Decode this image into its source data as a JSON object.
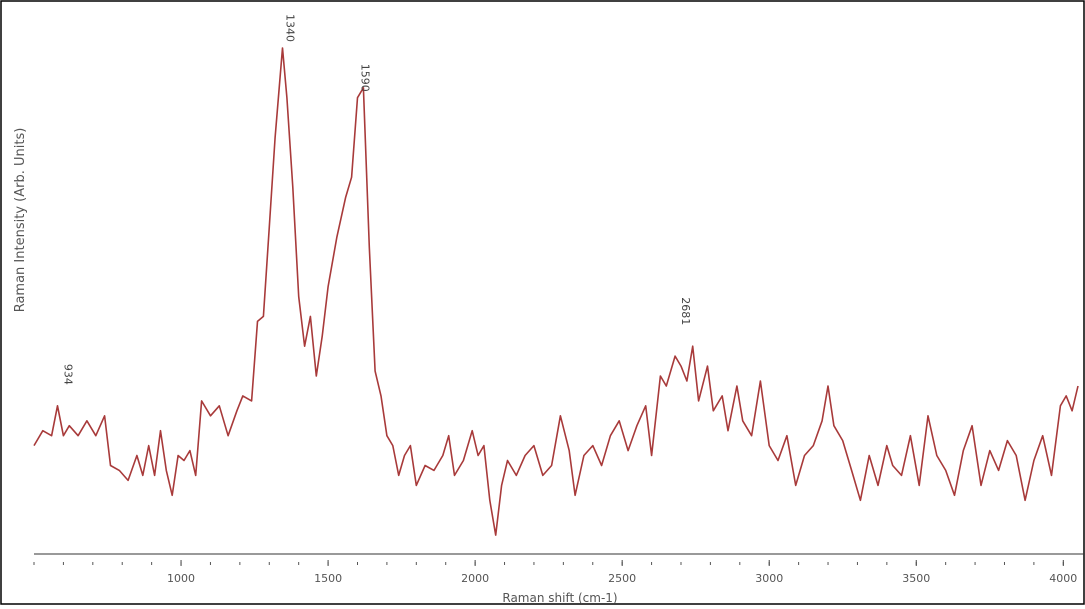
{
  "chart_data": {
    "type": "line",
    "title": "",
    "xlabel": "Raman shift (cm-1)",
    "ylabel": "Raman Intensity (Arb. Units)",
    "xlim": [
      500,
      4050
    ],
    "ylim": [
      0,
      100
    ],
    "x_ticks": [
      1000,
      1500,
      2000,
      2500,
      3000,
      3500,
      4000
    ],
    "grid": false,
    "legend": "none",
    "line_color": "#a83a3a",
    "annotations": [
      {
        "label": "934",
        "x": 590,
        "y": 31
      },
      {
        "label": "1340",
        "x": 1345,
        "y": 100
      },
      {
        "label": "1590",
        "x": 1600,
        "y": 90
      },
      {
        "label": "2681",
        "x": 2690,
        "y": 43
      }
    ],
    "series": [
      {
        "values": [
          [
            500,
            20
          ],
          [
            530,
            23
          ],
          [
            560,
            22
          ],
          [
            580,
            28
          ],
          [
            600,
            22
          ],
          [
            620,
            24
          ],
          [
            650,
            22
          ],
          [
            680,
            25
          ],
          [
            710,
            22
          ],
          [
            740,
            26
          ],
          [
            760,
            16
          ],
          [
            790,
            15
          ],
          [
            820,
            13
          ],
          [
            850,
            18
          ],
          [
            870,
            14
          ],
          [
            890,
            20
          ],
          [
            910,
            14
          ],
          [
            930,
            23
          ],
          [
            950,
            15
          ],
          [
            970,
            10
          ],
          [
            990,
            18
          ],
          [
            1010,
            17
          ],
          [
            1030,
            19
          ],
          [
            1050,
            14
          ],
          [
            1070,
            29
          ],
          [
            1100,
            26
          ],
          [
            1130,
            28
          ],
          [
            1160,
            22
          ],
          [
            1190,
            27
          ],
          [
            1210,
            30
          ],
          [
            1240,
            29
          ],
          [
            1260,
            45
          ],
          [
            1280,
            46
          ],
          [
            1300,
            64
          ],
          [
            1320,
            82
          ],
          [
            1345,
            100
          ],
          [
            1360,
            90
          ],
          [
            1380,
            72
          ],
          [
            1400,
            50
          ],
          [
            1420,
            40
          ],
          [
            1440,
            46
          ],
          [
            1460,
            34
          ],
          [
            1480,
            42
          ],
          [
            1500,
            52
          ],
          [
            1530,
            62
          ],
          [
            1560,
            70
          ],
          [
            1580,
            74
          ],
          [
            1600,
            90
          ],
          [
            1620,
            92
          ],
          [
            1640,
            60
          ],
          [
            1660,
            35
          ],
          [
            1680,
            30
          ],
          [
            1700,
            22
          ],
          [
            1720,
            20
          ],
          [
            1740,
            14
          ],
          [
            1760,
            18
          ],
          [
            1780,
            20
          ],
          [
            1800,
            12
          ],
          [
            1830,
            16
          ],
          [
            1860,
            15
          ],
          [
            1890,
            18
          ],
          [
            1910,
            22
          ],
          [
            1930,
            14
          ],
          [
            1960,
            17
          ],
          [
            1990,
            23
          ],
          [
            2010,
            18
          ],
          [
            2030,
            20
          ],
          [
            2050,
            9
          ],
          [
            2070,
            2
          ],
          [
            2090,
            12
          ],
          [
            2110,
            17
          ],
          [
            2140,
            14
          ],
          [
            2170,
            18
          ],
          [
            2200,
            20
          ],
          [
            2230,
            14
          ],
          [
            2260,
            16
          ],
          [
            2290,
            26
          ],
          [
            2320,
            19
          ],
          [
            2340,
            10
          ],
          [
            2370,
            18
          ],
          [
            2400,
            20
          ],
          [
            2430,
            16
          ],
          [
            2460,
            22
          ],
          [
            2490,
            25
          ],
          [
            2520,
            19
          ],
          [
            2550,
            24
          ],
          [
            2580,
            28
          ],
          [
            2600,
            18
          ],
          [
            2630,
            34
          ],
          [
            2650,
            32
          ],
          [
            2680,
            38
          ],
          [
            2700,
            36
          ],
          [
            2720,
            33
          ],
          [
            2740,
            40
          ],
          [
            2760,
            29
          ],
          [
            2790,
            36
          ],
          [
            2810,
            27
          ],
          [
            2840,
            30
          ],
          [
            2860,
            23
          ],
          [
            2890,
            32
          ],
          [
            2910,
            25
          ],
          [
            2940,
            22
          ],
          [
            2970,
            33
          ],
          [
            3000,
            20
          ],
          [
            3030,
            17
          ],
          [
            3060,
            22
          ],
          [
            3090,
            12
          ],
          [
            3120,
            18
          ],
          [
            3150,
            20
          ],
          [
            3180,
            25
          ],
          [
            3200,
            32
          ],
          [
            3220,
            24
          ],
          [
            3250,
            21
          ],
          [
            3280,
            15
          ],
          [
            3310,
            9
          ],
          [
            3340,
            18
          ],
          [
            3370,
            12
          ],
          [
            3400,
            20
          ],
          [
            3420,
            16
          ],
          [
            3450,
            14
          ],
          [
            3480,
            22
          ],
          [
            3510,
            12
          ],
          [
            3540,
            26
          ],
          [
            3570,
            18
          ],
          [
            3600,
            15
          ],
          [
            3630,
            10
          ],
          [
            3660,
            19
          ],
          [
            3690,
            24
          ],
          [
            3720,
            12
          ],
          [
            3750,
            19
          ],
          [
            3780,
            15
          ],
          [
            3810,
            21
          ],
          [
            3840,
            18
          ],
          [
            3870,
            9
          ],
          [
            3900,
            17
          ],
          [
            3930,
            22
          ],
          [
            3960,
            14
          ],
          [
            3990,
            28
          ],
          [
            4010,
            30
          ],
          [
            4030,
            27
          ],
          [
            4050,
            32
          ]
        ]
      }
    ]
  }
}
